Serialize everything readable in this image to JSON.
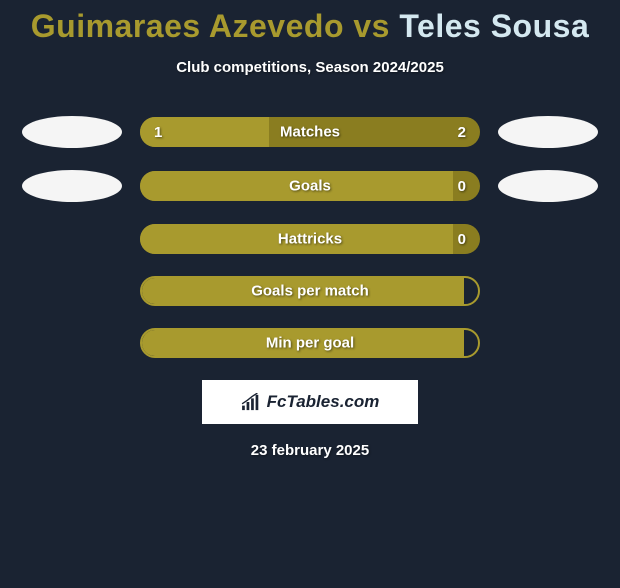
{
  "title": {
    "player1": "Guimaraes Azevedo",
    "vs": " vs ",
    "player2": "Teles Sousa",
    "color1": "#a89a2e",
    "color2": "#d4e8f0"
  },
  "subtitle": "Club competitions, Season 2024/2025",
  "background_color": "#1a2332",
  "ellipse_colors": {
    "left1": "#f5f5f5",
    "left2": "#f5f5f5",
    "right1": "#f5f5f5",
    "right2": "#f5f5f5"
  },
  "bar_colors": {
    "left": "#a89a2e",
    "right": "#8a7d20",
    "full": "#a89a2e",
    "border": "#a89a2e"
  },
  "stats": [
    {
      "label": "Matches",
      "left_value": "1",
      "right_value": "2",
      "left_pct": 38,
      "show_ellipses": true,
      "has_split": true
    },
    {
      "label": "Goals",
      "left_value": "",
      "right_value": "0",
      "left_pct": 92,
      "show_ellipses": true,
      "has_split": true
    },
    {
      "label": "Hattricks",
      "left_value": "",
      "right_value": "0",
      "left_pct": 92,
      "show_ellipses": false,
      "has_split": true
    },
    {
      "label": "Goals per match",
      "left_value": "",
      "right_value": "",
      "left_pct": 100,
      "show_ellipses": false,
      "has_split": false
    },
    {
      "label": "Min per goal",
      "left_value": "",
      "right_value": "",
      "left_pct": 100,
      "show_ellipses": false,
      "has_split": false
    }
  ],
  "logo_text": "FcTables.com",
  "date": "23 february 2025"
}
